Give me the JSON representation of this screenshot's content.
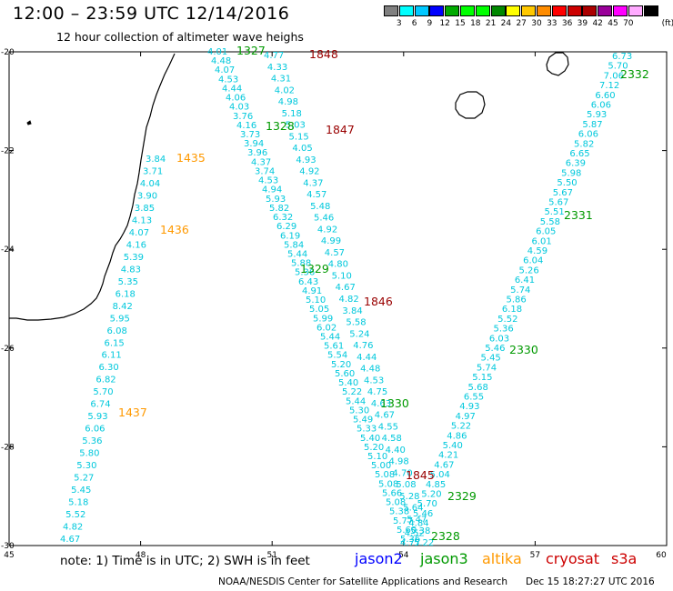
{
  "title": "12:00 – 23:59 UTC 12/14/2016",
  "subtitle": "12 hour collection of altimeter wave heighs",
  "note": "note:  1) Time is in UTC;  2) SWH is in feet",
  "credit": "NOAA/NESDIS Center for Satellite Applications and Research",
  "timestamp": "Dec 15 18:27:27 UTC 2016",
  "legend": {
    "unit": "(ft)",
    "colors": [
      "#808080",
      "#00ffff",
      "#00c8ff",
      "#0000ff",
      "#00aa00",
      "#00ff00",
      "#00ff00",
      "#008800",
      "#ffff00",
      "#ffc800",
      "#ff8c00",
      "#ff0000",
      "#cc0000",
      "#aa0000",
      "#990099",
      "#ff00ff",
      "#ffaaff",
      "#000000"
    ],
    "labels": [
      "3",
      "6",
      "9",
      "12",
      "15",
      "18",
      "21",
      "24",
      "27",
      "30",
      "33",
      "36",
      "39",
      "42",
      "45",
      "70"
    ]
  },
  "satellites": [
    {
      "name": "jason2",
      "color": "#0000ff"
    },
    {
      "name": "jason3",
      "color": "#009900"
    },
    {
      "name": "altika",
      "color": "#ff9900"
    },
    {
      "name": "cryosat",
      "color": "#cc0000"
    },
    {
      "name": "s3a",
      "color": "#cc0000"
    }
  ],
  "axes": {
    "lon_ticks": [
      "45",
      "48",
      "51",
      "54",
      "57",
      "60"
    ],
    "lat_ticks": [
      "-20",
      "-22",
      "-24",
      "-26",
      "-28",
      "-30"
    ]
  },
  "map_data": {
    "lon_range": [
      45,
      60
    ],
    "lat_range": [
      -30,
      -20
    ],
    "swh_color": "#00c8dc",
    "tracks": [
      {
        "time": "1327",
        "satellite": "jason3",
        "values": [
          "4.01",
          "4.48",
          "4.07",
          "4.53",
          "4.44",
          "4.06",
          "4.03",
          "3.76",
          "4.16",
          "3.73",
          "3.94",
          "3.96",
          "4.37",
          "3.74",
          "4.53",
          "4.94",
          "5.93",
          "5.82",
          "6.32",
          "6.29",
          "6.19",
          "5.84",
          "5.44",
          "5.88",
          "5.36",
          "6.43",
          "4.91",
          "5.10",
          "5.05",
          "5.99",
          "6.02",
          "5.44",
          "5.61",
          "5.54",
          "5.20",
          "5.60",
          "5.40",
          "5.22",
          "5.44",
          "5.30",
          "5.49",
          "5.33",
          "5.40",
          "5.20",
          "5.10",
          "5.00",
          "5.08",
          "5.08",
          "5.66",
          "5.08",
          "5.38",
          "5.77",
          "5.60",
          "5.36"
        ]
      },
      {
        "time": "1848",
        "satellite": "cryosat",
        "values": [
          "4.77",
          "4.33",
          "4.31",
          "4.02",
          "4.98",
          "5.18",
          "5.03",
          "5.15",
          "4.05",
          "4.93",
          "4.92",
          "4.37",
          "4.57",
          "5.48",
          "5.46",
          "4.92",
          "4.99",
          "4.57",
          "4.80",
          "5.10",
          "4.67",
          "4.82",
          "3.84",
          "5.58",
          "5.24",
          "4.76",
          "4.44",
          "4.48",
          "4.53",
          "4.75",
          "4.63",
          "4.67",
          "4.55",
          "4.58",
          "4.40",
          "4.98",
          "4.70",
          "5.08",
          "5.28",
          "5.64",
          "5.47",
          "5.38",
          "5.22"
        ]
      },
      {
        "time": "2332",
        "satellite": "jason3",
        "values": [
          "6.73",
          "5.70",
          "7.06",
          "7.12",
          "6.60",
          "6.06",
          "5.93",
          "5.87",
          "6.06",
          "5.82",
          "6.65",
          "6.39",
          "5.98",
          "5.50",
          "5.67",
          "5.67",
          "5.51",
          "5.58",
          "6.05",
          "6.01",
          "4.59",
          "6.04",
          "5.26",
          "6.41",
          "5.74",
          "5.86",
          "6.18",
          "5.52",
          "5.36",
          "6.03",
          "5.46",
          "5.45",
          "5.74",
          "5.15",
          "5.68",
          "6.55",
          "4.93",
          "4.97",
          "5.22",
          "4.86",
          "5.40",
          "4.21",
          "4.67",
          "5.04",
          "4.85",
          "5.20",
          "5.70",
          "5.46",
          "4.84",
          "4.52",
          "4.77"
        ]
      },
      {
        "time": "1435",
        "satellite": "altika",
        "values": [
          "3.84",
          "3.71",
          "4.04",
          "3.90",
          "3.85",
          "4.13",
          "4.07",
          "4.16",
          "5.39",
          "4.83",
          "5.35",
          "6.18",
          "8.42",
          "5.95",
          "6.08",
          "6.15",
          "6.11",
          "6.30",
          "6.82",
          "5.70",
          "6.74",
          "5.93",
          "6.06",
          "5.36",
          "5.80",
          "5.30",
          "5.27",
          "5.45",
          "5.18",
          "5.52",
          "4.82",
          "4.67"
        ]
      }
    ],
    "pass_labels": [
      {
        "text": "1327",
        "color": "#009900"
      },
      {
        "text": "1848",
        "color": "#990000"
      },
      {
        "text": "1328",
        "color": "#009900"
      },
      {
        "text": "1847",
        "color": "#990000"
      },
      {
        "text": "1435",
        "color": "#ff9900"
      },
      {
        "text": "1436",
        "color": "#ff9900"
      },
      {
        "text": "1329",
        "color": "#009900"
      },
      {
        "text": "1846",
        "color": "#990000"
      },
      {
        "text": "1330",
        "color": "#009900"
      },
      {
        "text": "1437",
        "color": "#ff9900"
      },
      {
        "text": "1845",
        "color": "#990000"
      },
      {
        "text": "2332",
        "color": "#009900"
      },
      {
        "text": "2331",
        "color": "#009900"
      },
      {
        "text": "2330",
        "color": "#009900"
      },
      {
        "text": "2329",
        "color": "#009900"
      },
      {
        "text": "2328",
        "color": "#009900"
      }
    ]
  }
}
